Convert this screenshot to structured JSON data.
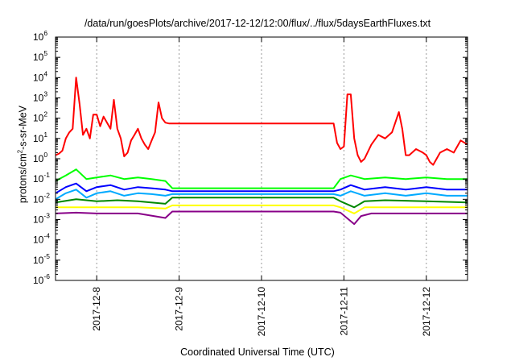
{
  "chart_data": {
    "type": "line",
    "title": "/data/run/goesPlots/archive/2017-12-12/12:00/flux/../flux/5daysEarthFluxes.txt",
    "xlabel": "Coordinated Universal Time (UTC)",
    "ylabel": {
      "pre": "protons/cm",
      "sup": "2",
      "post": "-s-sr-MeV"
    },
    "yscale": "log",
    "ylim": [
      1e-06,
      1000000.0
    ],
    "y_ticks": [
      {
        "value": 1e-06,
        "base": "10",
        "exp": "-6"
      },
      {
        "value": 1e-05,
        "base": "10",
        "exp": "-5"
      },
      {
        "value": 0.0001,
        "base": "10",
        "exp": "-4"
      },
      {
        "value": 0.001,
        "base": "10",
        "exp": "-3"
      },
      {
        "value": 0.01,
        "base": "10",
        "exp": "-2"
      },
      {
        "value": 0.1,
        "base": "10",
        "exp": "-1"
      },
      {
        "value": 1,
        "base": "10",
        "exp": "0"
      },
      {
        "value": 10.0,
        "base": "10",
        "exp": "1"
      },
      {
        "value": 100.0,
        "base": "10",
        "exp": "2"
      },
      {
        "value": 1000.0,
        "base": "10",
        "exp": "3"
      },
      {
        "value": 10000.0,
        "base": "10",
        "exp": "4"
      },
      {
        "value": 100000.0,
        "base": "10",
        "exp": "5"
      },
      {
        "value": 1000000.0,
        "base": "10",
        "exp": "6"
      }
    ],
    "xlim": [
      "2017-12-07T12:00",
      "2017-12-12T12:00"
    ],
    "x_ticks": [
      "2017-12-8",
      "2017-12-9",
      "2017-12-10",
      "2017-12-11",
      "2017-12-12"
    ],
    "x_tick_values": [
      "2017-12-08T00:00",
      "2017-12-09T00:00",
      "2017-12-10T00:00",
      "2017-12-11T00:00",
      "2017-12-12T00:00"
    ],
    "grid": true,
    "series": [
      {
        "color": "#ff0000",
        "values": [
          [
            "2017-12-07T12:00",
            1.5
          ],
          [
            "2017-12-07T13:00",
            1.8
          ],
          [
            "2017-12-07T14:00",
            2.5
          ],
          [
            "2017-12-07T15:00",
            10
          ],
          [
            "2017-12-07T16:00",
            20
          ],
          [
            "2017-12-07T17:00",
            30
          ],
          [
            "2017-12-07T18:00",
            10000
          ],
          [
            "2017-12-07T19:00",
            500
          ],
          [
            "2017-12-07T20:00",
            15
          ],
          [
            "2017-12-07T21:00",
            30
          ],
          [
            "2017-12-07T22:00",
            10
          ],
          [
            "2017-12-07T23:00",
            150
          ],
          [
            "2017-12-08T00:00",
            150
          ],
          [
            "2017-12-08T01:00",
            40
          ],
          [
            "2017-12-08T02:00",
            120
          ],
          [
            "2017-12-08T03:00",
            60
          ],
          [
            "2017-12-08T04:00",
            30
          ],
          [
            "2017-12-08T05:00",
            800
          ],
          [
            "2017-12-08T06:00",
            30
          ],
          [
            "2017-12-08T07:00",
            10
          ],
          [
            "2017-12-08T08:00",
            1.3
          ],
          [
            "2017-12-08T09:00",
            2
          ],
          [
            "2017-12-08T10:00",
            8
          ],
          [
            "2017-12-08T11:00",
            15
          ],
          [
            "2017-12-08T12:00",
            30
          ],
          [
            "2017-12-08T13:00",
            10
          ],
          [
            "2017-12-08T14:00",
            5
          ],
          [
            "2017-12-08T15:00",
            3
          ],
          [
            "2017-12-08T16:00",
            8
          ],
          [
            "2017-12-08T17:00",
            20
          ],
          [
            "2017-12-08T18:00",
            600
          ],
          [
            "2017-12-08T19:00",
            100
          ],
          [
            "2017-12-08T20:00",
            60
          ],
          [
            "2017-12-08T21:00",
            55
          ],
          [
            "2017-12-09T00:00",
            55
          ],
          [
            "2017-12-10T12:00",
            55
          ],
          [
            "2017-12-10T21:00",
            55
          ],
          [
            "2017-12-10T22:00",
            6
          ],
          [
            "2017-12-10T23:00",
            3
          ],
          [
            "2017-12-11T00:00",
            4
          ],
          [
            "2017-12-11T01:00",
            1500
          ],
          [
            "2017-12-11T02:00",
            1500
          ],
          [
            "2017-12-11T03:00",
            10
          ],
          [
            "2017-12-11T04:00",
            1.5
          ],
          [
            "2017-12-11T05:00",
            0.7
          ],
          [
            "2017-12-11T06:00",
            1
          ],
          [
            "2017-12-11T08:00",
            5
          ],
          [
            "2017-12-11T10:00",
            15
          ],
          [
            "2017-12-11T12:00",
            10
          ],
          [
            "2017-12-11T14:00",
            20
          ],
          [
            "2017-12-11T16:00",
            200
          ],
          [
            "2017-12-11T17:00",
            30
          ],
          [
            "2017-12-11T18:00",
            1.5
          ],
          [
            "2017-12-11T19:00",
            1.5
          ],
          [
            "2017-12-11T21:00",
            3
          ],
          [
            "2017-12-11T23:00",
            2
          ],
          [
            "2017-12-12T00:00",
            1.5
          ],
          [
            "2017-12-12T01:00",
            0.7
          ],
          [
            "2017-12-12T02:00",
            0.5
          ],
          [
            "2017-12-12T04:00",
            2
          ],
          [
            "2017-12-12T06:00",
            3
          ],
          [
            "2017-12-12T08:00",
            2
          ],
          [
            "2017-12-12T10:00",
            8
          ],
          [
            "2017-12-12T12:00",
            5
          ]
        ]
      },
      {
        "color": "#00ff00",
        "values": [
          [
            "2017-12-07T12:00",
            0.08
          ],
          [
            "2017-12-07T15:00",
            0.15
          ],
          [
            "2017-12-07T18:00",
            0.3
          ],
          [
            "2017-12-07T21:00",
            0.1
          ],
          [
            "2017-12-08T00:00",
            0.12
          ],
          [
            "2017-12-08T04:00",
            0.15
          ],
          [
            "2017-12-08T08:00",
            0.1
          ],
          [
            "2017-12-08T12:00",
            0.12
          ],
          [
            "2017-12-08T16:00",
            0.1
          ],
          [
            "2017-12-08T20:00",
            0.08
          ],
          [
            "2017-12-08T22:00",
            0.035
          ],
          [
            "2017-12-10T21:00",
            0.035
          ],
          [
            "2017-12-10T23:00",
            0.1
          ],
          [
            "2017-12-11T02:00",
            0.15
          ],
          [
            "2017-12-11T06:00",
            0.1
          ],
          [
            "2017-12-11T12:00",
            0.12
          ],
          [
            "2017-12-11T18:00",
            0.1
          ],
          [
            "2017-12-12T00:00",
            0.12
          ],
          [
            "2017-12-12T06:00",
            0.1
          ],
          [
            "2017-12-12T12:00",
            0.1
          ]
        ]
      },
      {
        "color": "#0000ff",
        "values": [
          [
            "2017-12-07T12:00",
            0.02
          ],
          [
            "2017-12-07T15:00",
            0.04
          ],
          [
            "2017-12-07T18:00",
            0.06
          ],
          [
            "2017-12-07T21:00",
            0.025
          ],
          [
            "2017-12-08T00:00",
            0.04
          ],
          [
            "2017-12-08T04:00",
            0.05
          ],
          [
            "2017-12-08T08:00",
            0.03
          ],
          [
            "2017-12-08T12:00",
            0.04
          ],
          [
            "2017-12-08T16:00",
            0.035
          ],
          [
            "2017-12-08T20:00",
            0.03
          ],
          [
            "2017-12-08T22:00",
            0.025
          ],
          [
            "2017-12-10T21:00",
            0.025
          ],
          [
            "2017-12-10T23:00",
            0.03
          ],
          [
            "2017-12-11T02:00",
            0.05
          ],
          [
            "2017-12-11T06:00",
            0.03
          ],
          [
            "2017-12-11T12:00",
            0.04
          ],
          [
            "2017-12-11T18:00",
            0.03
          ],
          [
            "2017-12-12T00:00",
            0.04
          ],
          [
            "2017-12-12T06:00",
            0.03
          ],
          [
            "2017-12-12T12:00",
            0.03
          ]
        ]
      },
      {
        "color": "#00aaff",
        "values": [
          [
            "2017-12-07T12:00",
            0.01
          ],
          [
            "2017-12-07T15:00",
            0.02
          ],
          [
            "2017-12-07T18:00",
            0.03
          ],
          [
            "2017-12-07T21:00",
            0.012
          ],
          [
            "2017-12-08T00:00",
            0.02
          ],
          [
            "2017-12-08T04:00",
            0.025
          ],
          [
            "2017-12-08T08:00",
            0.015
          ],
          [
            "2017-12-08T12:00",
            0.02
          ],
          [
            "2017-12-08T16:00",
            0.018
          ],
          [
            "2017-12-08T20:00",
            0.015
          ],
          [
            "2017-12-08T22:00",
            0.018
          ],
          [
            "2017-12-10T21:00",
            0.018
          ],
          [
            "2017-12-10T23:00",
            0.015
          ],
          [
            "2017-12-11T02:00",
            0.025
          ],
          [
            "2017-12-11T06:00",
            0.015
          ],
          [
            "2017-12-11T12:00",
            0.02
          ],
          [
            "2017-12-11T18:00",
            0.015
          ],
          [
            "2017-12-12T00:00",
            0.02
          ],
          [
            "2017-12-12T06:00",
            0.015
          ],
          [
            "2017-12-12T12:00",
            0.015
          ]
        ]
      },
      {
        "color": "#008800",
        "values": [
          [
            "2017-12-07T12:00",
            0.007
          ],
          [
            "2017-12-07T18:00",
            0.01
          ],
          [
            "2017-12-08T00:00",
            0.008
          ],
          [
            "2017-12-08T06:00",
            0.009
          ],
          [
            "2017-12-08T12:00",
            0.008
          ],
          [
            "2017-12-08T20:00",
            0.006
          ],
          [
            "2017-12-08T22:00",
            0.012
          ],
          [
            "2017-12-10T21:00",
            0.012
          ],
          [
            "2017-12-10T23:00",
            0.008
          ],
          [
            "2017-12-11T03:00",
            0.004
          ],
          [
            "2017-12-11T06:00",
            0.008
          ],
          [
            "2017-12-11T12:00",
            0.009
          ],
          [
            "2017-12-12T00:00",
            0.008
          ],
          [
            "2017-12-12T12:00",
            0.007
          ]
        ]
      },
      {
        "color": "#ffff00",
        "values": [
          [
            "2017-12-07T12:00",
            0.004
          ],
          [
            "2017-12-08T00:00",
            0.004
          ],
          [
            "2017-12-08T12:00",
            0.004
          ],
          [
            "2017-12-08T20:00",
            0.0035
          ],
          [
            "2017-12-08T22:00",
            0.005
          ],
          [
            "2017-12-10T21:00",
            0.005
          ],
          [
            "2017-12-10T23:00",
            0.004
          ],
          [
            "2017-12-11T03:00",
            0.002
          ],
          [
            "2017-12-11T06:00",
            0.004
          ],
          [
            "2017-12-12T00:00",
            0.004
          ],
          [
            "2017-12-12T12:00",
            0.004
          ]
        ]
      },
      {
        "color": "#880088",
        "values": [
          [
            "2017-12-07T12:00",
            0.002
          ],
          [
            "2017-12-07T18:00",
            0.0022
          ],
          [
            "2017-12-08T00:00",
            0.002
          ],
          [
            "2017-12-08T12:00",
            0.002
          ],
          [
            "2017-12-08T20:00",
            0.0012
          ],
          [
            "2017-12-08T22:00",
            0.0025
          ],
          [
            "2017-12-10T21:00",
            0.0025
          ],
          [
            "2017-12-10T23:00",
            0.0022
          ],
          [
            "2017-12-11T03:00",
            0.0006
          ],
          [
            "2017-12-11T05:00",
            0.0015
          ],
          [
            "2017-12-11T08:00",
            0.002
          ],
          [
            "2017-12-12T00:00",
            0.002
          ],
          [
            "2017-12-12T12:00",
            0.002
          ]
        ]
      }
    ]
  }
}
